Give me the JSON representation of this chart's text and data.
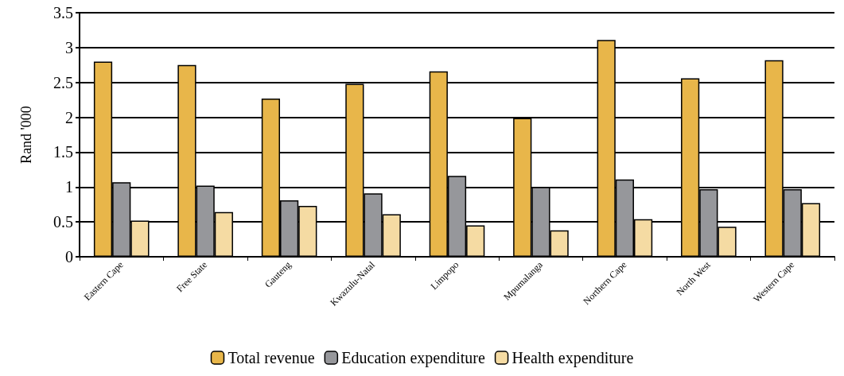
{
  "chart_data": {
    "type": "bar",
    "ylabel": "Rand '000",
    "categories": [
      "Eastern Cape",
      "Free State",
      "Gauteng",
      "Kwazulu-Natal",
      "Limpopo",
      "Mpumalanga",
      "Northern Cape",
      "North West",
      "Western Cape"
    ],
    "series": [
      {
        "name": "Total revenue",
        "color": "#e8b64a",
        "values": [
          2.8,
          2.75,
          2.27,
          2.48,
          2.66,
          1.99,
          3.11,
          2.56,
          2.82
        ]
      },
      {
        "name": "Education expenditure",
        "color": "#96979b",
        "values": [
          1.07,
          1.02,
          0.81,
          0.91,
          1.16,
          1.0,
          1.11,
          0.97,
          0.97
        ]
      },
      {
        "name": "Health expenditure",
        "color": "#f5dba3",
        "values": [
          0.52,
          0.64,
          0.73,
          0.61,
          0.45,
          0.38,
          0.54,
          0.43,
          0.77
        ]
      }
    ],
    "ylim": [
      0,
      3.5
    ],
    "yticks": [
      0,
      0.5,
      1,
      1.5,
      2,
      2.5,
      3,
      3.5
    ],
    "grid": "y",
    "legend": "bottom"
  }
}
